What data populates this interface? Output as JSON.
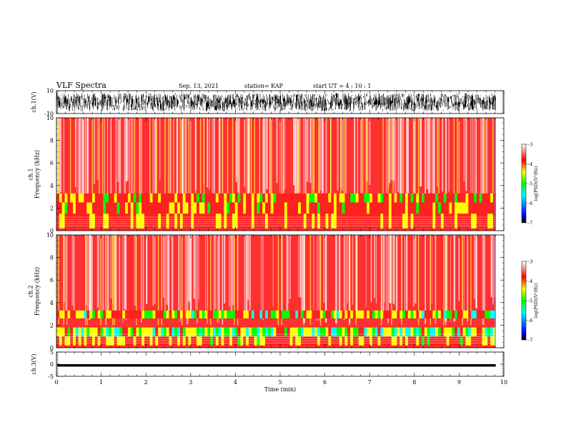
{
  "header": {
    "title": "VLF Spectra",
    "date": "Sep. 13, 2021",
    "station": "station= KAP",
    "start": "start UT =  4 : 10 : 1"
  },
  "chart_data": [
    {
      "type": "line",
      "panel": "ch1-waveform",
      "ylabel": "ch.1(V)",
      "xlim": [
        0,
        10
      ],
      "ylim": [
        -10,
        10
      ],
      "yticks": [
        -10,
        10
      ],
      "description_values": {
        "data_end_min": 9.82,
        "typical_range": [
          -8,
          8
        ]
      }
    },
    {
      "type": "heatmap",
      "panel": "ch1-spectrogram",
      "ylabel": "ch.1\nFrequency (kHz)",
      "xlim": [
        0,
        10
      ],
      "ylim": [
        0,
        10
      ],
      "yticks": [
        0,
        2,
        4,
        6,
        8,
        10
      ],
      "colorbar": {
        "label": "log(PSD)(V²/Hz)",
        "range": [
          -7,
          -3
        ],
        "ticks": [
          -7,
          -6,
          -5,
          -4,
          -3
        ]
      },
      "data_end_min": 9.82
    },
    {
      "type": "heatmap",
      "panel": "ch2-spectrogram",
      "ylabel": "ch.2\nFrequency (kHz)",
      "xlim": [
        0,
        10
      ],
      "ylim": [
        0,
        10
      ],
      "yticks": [
        0,
        2,
        4,
        6,
        8,
        10
      ],
      "colorbar": {
        "label": "log(PSD)(V²/Hz)",
        "range": [
          -7,
          -3
        ],
        "ticks": [
          -7,
          -6,
          -5,
          -4,
          -3
        ]
      },
      "data_end_min": 9.82
    },
    {
      "type": "line",
      "panel": "ch3-waveform",
      "ylabel": "ch.3(V)",
      "xlim": [
        0,
        10
      ],
      "ylim": [
        -5,
        5
      ],
      "yticks": [
        -5,
        0,
        5
      ],
      "xlabel": "Time (min)",
      "xticks": [
        0,
        1,
        2,
        3,
        4,
        5,
        6,
        7,
        8,
        9,
        10
      ],
      "description_values": {
        "data_end_min": 9.82,
        "typical_range": [
          -1,
          0
        ]
      }
    }
  ]
}
